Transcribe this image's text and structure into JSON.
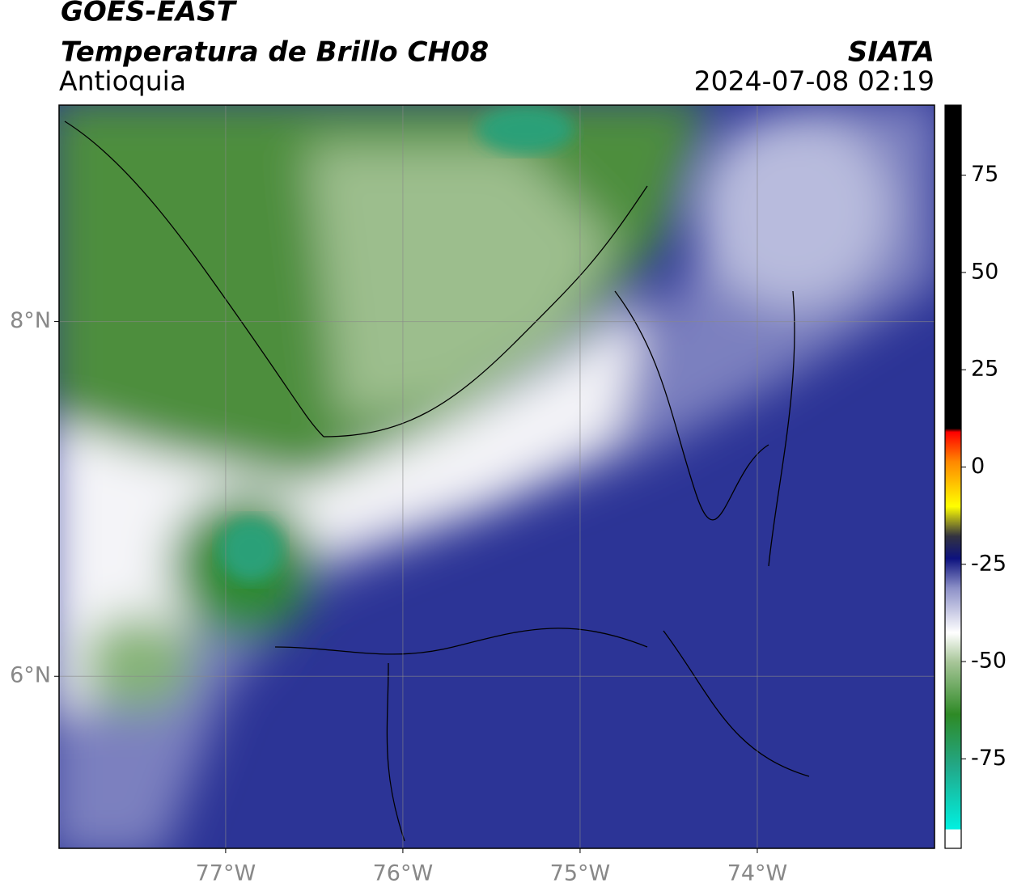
{
  "header": {
    "title": "GOES-EAST",
    "subtitle": "Temperatura de Brillo CH08",
    "region": "Antioquia",
    "source": "SIATA",
    "timestamp": "2024-07-08 02:19"
  },
  "map": {
    "lonlim": [
      -77.94,
      -73.0
    ],
    "latlim": [
      5.03,
      9.22
    ],
    "lon_ticks": [
      {
        "value": -77,
        "label": "77°W"
      },
      {
        "value": -76,
        "label": "76°W"
      },
      {
        "value": -75,
        "label": "75°W"
      },
      {
        "value": -74,
        "label": "74°W"
      }
    ],
    "lat_ticks": [
      {
        "value": 8,
        "label": "8°N"
      },
      {
        "value": 6,
        "label": "6°N"
      }
    ],
    "grid": true
  },
  "colorbar": {
    "lim": [
      -98,
      93
    ],
    "ticks": [
      75,
      50,
      25,
      0,
      -25,
      -50,
      -75
    ]
  }
}
